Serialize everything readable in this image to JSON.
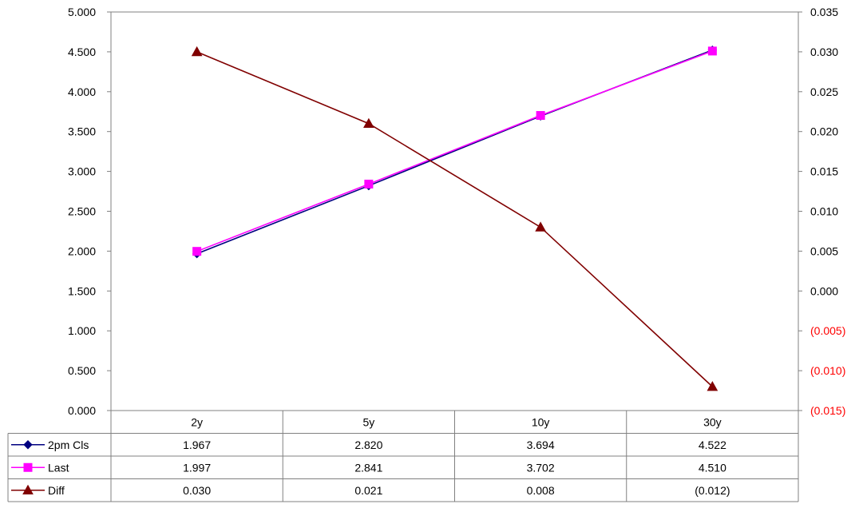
{
  "chart_data": {
    "type": "line",
    "categories": [
      "2y",
      "5y",
      "10y",
      "30y"
    ],
    "y_left": {
      "min": 0,
      "max": 5,
      "step": 0.5,
      "tick_labels": [
        "0.000",
        "0.500",
        "1.000",
        "1.500",
        "2.000",
        "2.500",
        "3.000",
        "3.500",
        "4.000",
        "4.500",
        "5.000"
      ]
    },
    "y_right": {
      "min": -0.015,
      "max": 0.035,
      "step": 0.005,
      "tick_labels": [
        "(0.015)",
        "(0.010)",
        "(0.005)",
        "0.000",
        "0.005",
        "0.010",
        "0.015",
        "0.020",
        "0.025",
        "0.030",
        "0.035"
      ],
      "negative_color": "#ff0000"
    },
    "series": [
      {
        "name": "2pm Cls",
        "axis": "left",
        "color": "#000080",
        "marker": "diamond",
        "values": [
          1.967,
          2.82,
          3.694,
          4.522
        ],
        "table": [
          "1.967",
          "2.820",
          "3.694",
          "4.522"
        ]
      },
      {
        "name": "Last",
        "axis": "left",
        "color": "#ff00ff",
        "marker": "square",
        "values": [
          1.997,
          2.841,
          3.702,
          4.51
        ],
        "table": [
          "1.997",
          "2.841",
          "3.702",
          "4.510"
        ]
      },
      {
        "name": "Diff",
        "axis": "right",
        "color": "#800000",
        "marker": "triangle",
        "values": [
          0.03,
          0.021,
          0.008,
          -0.012
        ],
        "table": [
          "0.030",
          "0.021",
          "0.008",
          "(0.012)"
        ]
      }
    ],
    "grid": false,
    "legend_placement": "data-table"
  }
}
